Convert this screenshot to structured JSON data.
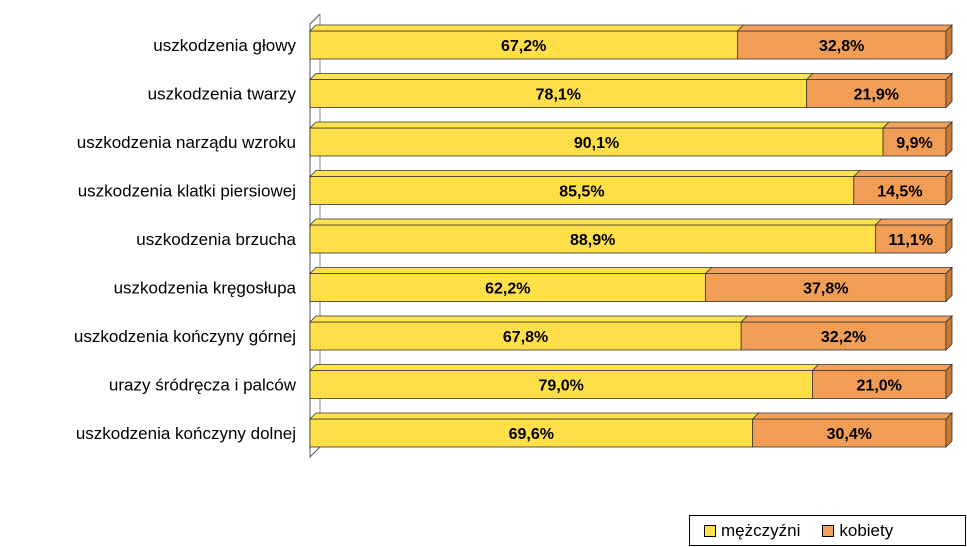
{
  "chart_data": {
    "type": "bar",
    "orientation": "horizontal",
    "stacked": "100%",
    "style": "3d",
    "categories": [
      "uszkodzenia głowy",
      "uszkodzenia twarzy",
      "uszkodzenia narządu wzroku",
      "uszkodzenia klatki piersiowej",
      "uszkodzenia brzucha",
      "uszkodzenia kręgosłupa",
      "uszkodzenia kończyny górnej",
      "urazy śródręcza i palców",
      "uszkodzenia kończyny dolnej"
    ],
    "series": [
      {
        "name": "mężczyźni",
        "color": "#FFE24D",
        "values": [
          67.2,
          78.1,
          90.1,
          85.5,
          88.9,
          62.2,
          67.8,
          79.0,
          69.6
        ],
        "labels": [
          "67,2%",
          "78,1%",
          "90,1%",
          "85,5%",
          "88,9%",
          "62,2%",
          "67,8%",
          "79,0%",
          "69,6%"
        ]
      },
      {
        "name": "kobiety",
        "color": "#F2A05A",
        "values": [
          32.8,
          21.9,
          9.9,
          14.5,
          11.1,
          37.8,
          32.2,
          21.0,
          30.4
        ],
        "labels": [
          "32,8%",
          "21,9%",
          "9,9%",
          "14,5%",
          "11,1%",
          "37,8%",
          "32,2%",
          "21,0%",
          "30,4%"
        ]
      }
    ],
    "xlim": [
      0,
      100
    ],
    "grid": false,
    "legend_position": "bottom-right",
    "title": "",
    "xlabel": "",
    "ylabel": ""
  },
  "legend": {
    "items": [
      {
        "label": "mężczyźni",
        "color": "#FFE24D"
      },
      {
        "label": "kobiety",
        "color": "#F2A05A"
      }
    ]
  }
}
